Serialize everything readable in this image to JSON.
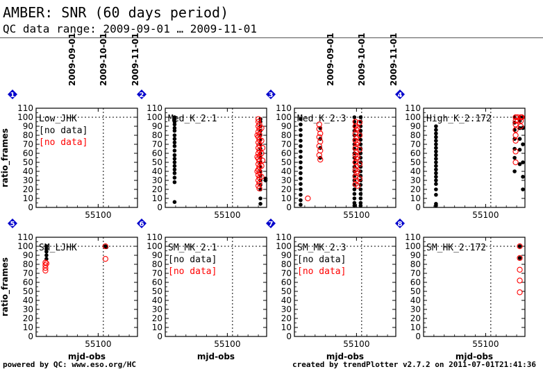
{
  "header": {
    "title": "AMBER: SNR (60 days period)",
    "subtitle": "QC data range: 2009-09-01 … 2009-11-01"
  },
  "footer": {
    "left": "powered by QC: www.eso.org/HC",
    "right": "created by trendPlotter v2.7.2 on 2011-07-01T21:41:36"
  },
  "colors": {
    "black_series": "#000000",
    "red_series": "#ff0000",
    "badge": "#0000cc"
  },
  "chart_data": {
    "type": "scatter",
    "ylabel": "ratio_frames",
    "xlabel": "mjd-obs",
    "ylim": [
      0,
      110
    ],
    "yticks": [
      0,
      10,
      20,
      30,
      40,
      50,
      60,
      70,
      80,
      90,
      100,
      110
    ],
    "xlim": [
      55040,
      55138
    ],
    "xticks": [
      55100
    ],
    "date_ticks": [
      {
        "label": "2009-09-01",
        "mjd": 55075
      },
      {
        "label": "2009-10-01",
        "mjd": 55105
      },
      {
        "label": "2009-11-01",
        "mjd": 55136
      }
    ],
    "hline": 100,
    "vline": 55105,
    "panels": [
      {
        "id": "1",
        "title": "Low_JHK",
        "no_data": [
          "[no data]",
          "[no data]"
        ],
        "black": [],
        "red": []
      },
      {
        "id": "2",
        "title": "Med_K_2.1",
        "no_data": [],
        "black": [
          [
            55049,
            100
          ],
          [
            55049,
            98
          ],
          [
            55049,
            95
          ],
          [
            55049,
            92
          ],
          [
            55049,
            88
          ],
          [
            55049,
            85
          ],
          [
            55049,
            80
          ],
          [
            55049,
            76
          ],
          [
            55049,
            72
          ],
          [
            55049,
            68
          ],
          [
            55049,
            63
          ],
          [
            55049,
            58
          ],
          [
            55049,
            54
          ],
          [
            55049,
            50
          ],
          [
            55049,
            46
          ],
          [
            55049,
            42
          ],
          [
            55049,
            38
          ],
          [
            55049,
            33
          ],
          [
            55049,
            28
          ],
          [
            55049,
            6
          ],
          [
            55132,
            98
          ],
          [
            55132,
            95
          ],
          [
            55132,
            90
          ],
          [
            55132,
            85
          ],
          [
            55132,
            80
          ],
          [
            55132,
            75
          ],
          [
            55132,
            70
          ],
          [
            55132,
            65
          ],
          [
            55132,
            60
          ],
          [
            55132,
            55
          ],
          [
            55132,
            50
          ],
          [
            55132,
            45
          ],
          [
            55132,
            40
          ],
          [
            55132,
            35
          ],
          [
            55132,
            30
          ],
          [
            55132,
            25
          ],
          [
            55132,
            20
          ],
          [
            55132,
            10
          ],
          [
            55132,
            4
          ],
          [
            55137,
            32
          ],
          [
            55137,
            30
          ]
        ],
        "red": [
          [
            55130,
            98
          ],
          [
            55130,
            95
          ],
          [
            55131,
            92
          ],
          [
            55130,
            90
          ],
          [
            55131,
            87
          ],
          [
            55130,
            84
          ],
          [
            55131,
            81
          ],
          [
            55130,
            78
          ],
          [
            55131,
            75
          ],
          [
            55130,
            72
          ],
          [
            55131,
            69
          ],
          [
            55130,
            66
          ],
          [
            55131,
            63
          ],
          [
            55130,
            60
          ],
          [
            55131,
            57
          ],
          [
            55130,
            54
          ],
          [
            55131,
            51
          ],
          [
            55130,
            48
          ],
          [
            55131,
            45
          ],
          [
            55130,
            42
          ],
          [
            55131,
            39
          ],
          [
            55130,
            36
          ],
          [
            55131,
            33
          ],
          [
            55130,
            30
          ],
          [
            55131,
            27
          ],
          [
            55130,
            24
          ],
          [
            55131,
            21
          ],
          [
            55133,
            88
          ],
          [
            55133,
            74
          ],
          [
            55133,
            60
          ],
          [
            55133,
            46
          ],
          [
            55133,
            34
          ],
          [
            55129,
            80
          ],
          [
            55129,
            56
          ],
          [
            55129,
            40
          ],
          [
            55134,
            66
          ],
          [
            55134,
            52
          ]
        ]
      },
      {
        "id": "3",
        "title": "Med_K_2.3",
        "no_data": [],
        "black": [
          [
            55065,
            88
          ],
          [
            55065,
            76
          ],
          [
            55065,
            66
          ],
          [
            55065,
            55
          ],
          [
            55098,
            100
          ],
          [
            55098,
            95
          ],
          [
            55098,
            90
          ],
          [
            55098,
            85
          ],
          [
            55098,
            80
          ],
          [
            55098,
            75
          ],
          [
            55098,
            70
          ],
          [
            55098,
            65
          ],
          [
            55098,
            60
          ],
          [
            55098,
            55
          ],
          [
            55098,
            50
          ],
          [
            55098,
            45
          ],
          [
            55098,
            40
          ],
          [
            55098,
            35
          ],
          [
            55098,
            30
          ],
          [
            55098,
            25
          ],
          [
            55098,
            20
          ],
          [
            55098,
            15
          ],
          [
            55098,
            10
          ],
          [
            55098,
            5
          ],
          [
            55098,
            2
          ],
          [
            55104,
            100
          ],
          [
            55104,
            95
          ],
          [
            55104,
            90
          ],
          [
            55104,
            85
          ],
          [
            55104,
            80
          ],
          [
            55104,
            75
          ],
          [
            55104,
            70
          ],
          [
            55104,
            65
          ],
          [
            55104,
            60
          ],
          [
            55104,
            55
          ],
          [
            55104,
            50
          ],
          [
            55104,
            45
          ],
          [
            55104,
            40
          ],
          [
            55104,
            35
          ],
          [
            55104,
            30
          ],
          [
            55104,
            25
          ],
          [
            55104,
            20
          ],
          [
            55104,
            15
          ],
          [
            55104,
            10
          ],
          [
            55104,
            5
          ],
          [
            55104,
            2
          ],
          [
            55046,
            98
          ],
          [
            55046,
            92
          ],
          [
            55046,
            86
          ],
          [
            55046,
            80
          ],
          [
            55046,
            74
          ],
          [
            55046,
            68
          ],
          [
            55046,
            62
          ],
          [
            55046,
            56
          ],
          [
            55046,
            50
          ],
          [
            55046,
            44
          ],
          [
            55046,
            38
          ],
          [
            55046,
            32
          ],
          [
            55046,
            26
          ],
          [
            55046,
            20
          ],
          [
            55046,
            14
          ],
          [
            55046,
            8
          ],
          [
            55046,
            3
          ]
        ],
        "red": [
          [
            55064,
            92
          ],
          [
            55064,
            87
          ],
          [
            55065,
            82
          ],
          [
            55064,
            78
          ],
          [
            55065,
            73
          ],
          [
            55064,
            68
          ],
          [
            55065,
            63
          ],
          [
            55064,
            58
          ],
          [
            55065,
            53
          ],
          [
            55099,
            95
          ],
          [
            55099,
            90
          ],
          [
            55100,
            86
          ],
          [
            55099,
            82
          ],
          [
            55100,
            78
          ],
          [
            55099,
            74
          ],
          [
            55100,
            70
          ],
          [
            55099,
            66
          ],
          [
            55100,
            62
          ],
          [
            55099,
            58
          ],
          [
            55100,
            54
          ],
          [
            55099,
            50
          ],
          [
            55100,
            46
          ],
          [
            55099,
            42
          ],
          [
            55100,
            38
          ],
          [
            55099,
            34
          ],
          [
            55100,
            30
          ],
          [
            55099,
            26
          ],
          [
            55101,
            88
          ],
          [
            55101,
            72
          ],
          [
            55101,
            56
          ],
          [
            55101,
            40
          ],
          [
            55101,
            24
          ],
          [
            55103,
            94
          ],
          [
            55103,
            80
          ],
          [
            55103,
            64
          ],
          [
            55103,
            48
          ],
          [
            55103,
            32
          ],
          [
            55053,
            10
          ]
        ]
      },
      {
        "id": "4",
        "title": "High_K_2.172",
        "no_data": [],
        "black": [
          [
            55052,
            90
          ],
          [
            55052,
            86
          ],
          [
            55052,
            82
          ],
          [
            55052,
            78
          ],
          [
            55052,
            74
          ],
          [
            55052,
            70
          ],
          [
            55052,
            66
          ],
          [
            55052,
            62
          ],
          [
            55052,
            58
          ],
          [
            55052,
            54
          ],
          [
            55052,
            50
          ],
          [
            55052,
            46
          ],
          [
            55052,
            42
          ],
          [
            55052,
            38
          ],
          [
            55052,
            34
          ],
          [
            55052,
            30
          ],
          [
            55052,
            26
          ],
          [
            55052,
            20
          ],
          [
            55052,
            14
          ],
          [
            55052,
            4
          ],
          [
            55052,
            2
          ],
          [
            55128,
            100
          ],
          [
            55128,
            94
          ],
          [
            55128,
            86
          ],
          [
            55128,
            76
          ],
          [
            55128,
            65
          ],
          [
            55128,
            55
          ],
          [
            55128,
            40
          ],
          [
            55133,
            100
          ],
          [
            55133,
            96
          ],
          [
            55133,
            88
          ],
          [
            55133,
            76
          ],
          [
            55133,
            64
          ],
          [
            55133,
            48
          ],
          [
            55136,
            100
          ],
          [
            55136,
            88
          ],
          [
            55136,
            70
          ],
          [
            55136,
            50
          ],
          [
            55136,
            34
          ],
          [
            55136,
            20
          ]
        ],
        "red": [
          [
            55129,
            100
          ],
          [
            55129,
            96
          ],
          [
            55129,
            92
          ],
          [
            55129,
            86
          ],
          [
            55129,
            80
          ],
          [
            55129,
            74
          ],
          [
            55129,
            62
          ],
          [
            55129,
            50
          ],
          [
            55131,
            100
          ],
          [
            55131,
            96
          ],
          [
            55134,
            100
          ],
          [
            55134,
            96
          ],
          [
            55134,
            90
          ],
          [
            55135,
            100
          ]
        ]
      },
      {
        "id": "5",
        "title": "SM_LJHK",
        "no_data": [],
        "black": [
          [
            55050,
            100
          ],
          [
            55050,
            97
          ],
          [
            55050,
            94
          ],
          [
            55050,
            90
          ],
          [
            55050,
            86
          ],
          [
            55050,
            100
          ],
          [
            55107,
            100
          ],
          [
            55108,
            99
          ]
        ],
        "red": [
          [
            55049,
            82
          ],
          [
            55049,
            79
          ],
          [
            55049,
            76
          ],
          [
            55049,
            73
          ],
          [
            55050,
            81
          ],
          [
            55107,
            100
          ],
          [
            55107,
            86
          ]
        ]
      },
      {
        "id": "6",
        "title": "SM_MK_2.1",
        "no_data": [
          "[no data]",
          "[no data]"
        ],
        "black": [],
        "red": []
      },
      {
        "id": "7",
        "title": "SM_MK_2.3",
        "no_data": [
          "[no data]",
          "[no data]"
        ],
        "black": [],
        "red": []
      },
      {
        "id": "8",
        "title": "SM_HK_2.172",
        "no_data": [],
        "black": [
          [
            55133,
            100
          ],
          [
            55133,
            87
          ]
        ],
        "red": [
          [
            55133,
            100
          ],
          [
            55133,
            87
          ],
          [
            55133,
            74
          ],
          [
            55133,
            62
          ],
          [
            55133,
            49
          ]
        ]
      }
    ]
  }
}
